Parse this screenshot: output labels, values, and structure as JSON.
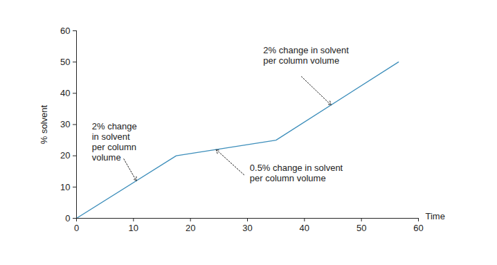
{
  "chart_data": {
    "type": "line",
    "x": [
      0,
      17.5,
      35,
      56.5
    ],
    "values": [
      0,
      20,
      25,
      50
    ],
    "color": "#3b8dba",
    "xlabel": "Time",
    "ylabel": "% solvent",
    "xlim": [
      0,
      60
    ],
    "ylim": [
      0,
      60
    ],
    "xticks": [
      0,
      10,
      20,
      30,
      40,
      50,
      60
    ],
    "yticks": [
      0,
      10,
      20,
      30,
      40,
      50,
      60
    ],
    "grid": false,
    "annotations": [
      "2% change\nin solvent\nper column\nvolume",
      "0.5% change in solvent\nper column volume",
      "2% change in solvent\nper column volume"
    ]
  }
}
